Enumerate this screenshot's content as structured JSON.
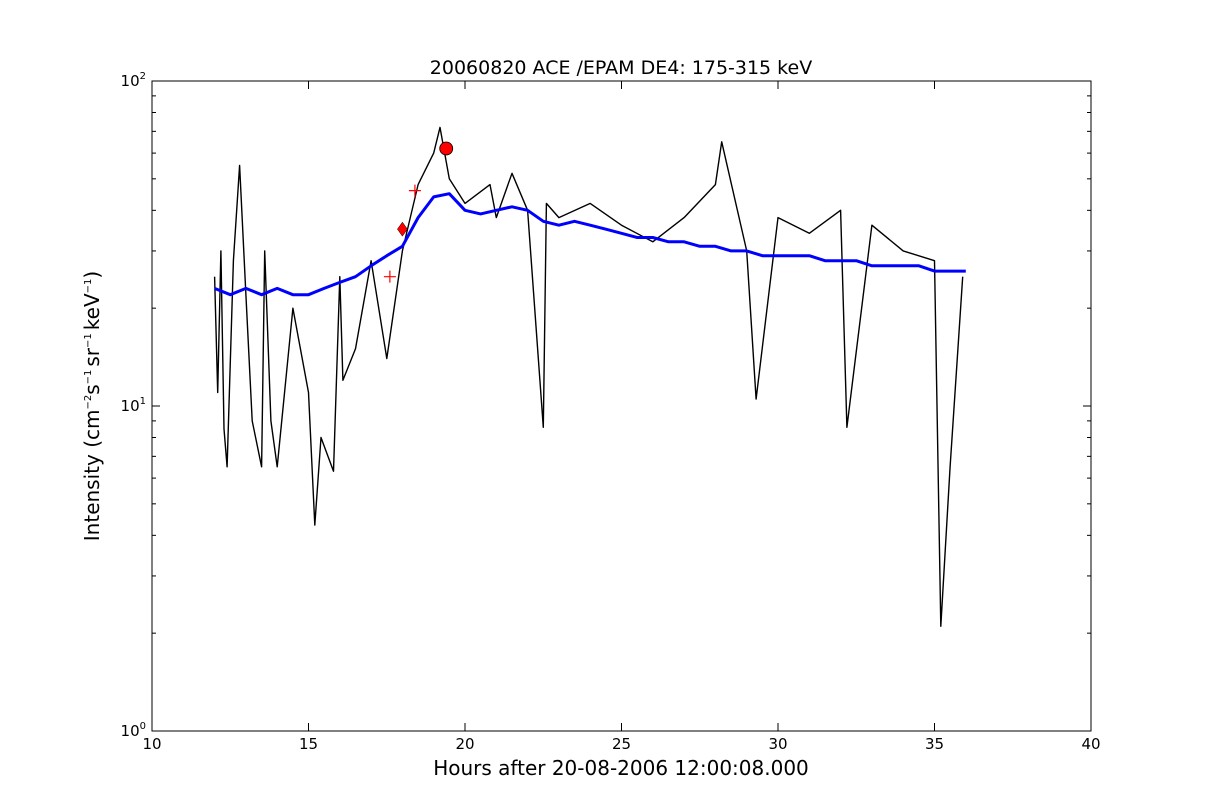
{
  "chart_data": {
    "type": "line",
    "title": "20060820 ACE /EPAM DE4: 175-315 keV",
    "xlabel": "Hours after 20-08-2006 12:00:08.000",
    "ylabel": {
      "prefix": "Intensity (cm",
      "sup1": "−2",
      "part2": "s",
      "sup2": "−1",
      "part3": "sr",
      "sup3": "−1",
      "part4": "keV",
      "sup4": "−1",
      "suffix": ")"
    },
    "xlim": [
      10,
      40
    ],
    "ylim": [
      1,
      100
    ],
    "yscale": "log",
    "grid": false,
    "x_ticks": [
      10,
      15,
      20,
      25,
      30,
      35,
      40
    ],
    "y_ticks": [
      {
        "value": 1,
        "base": "10",
        "exp": "0"
      },
      {
        "value": 10,
        "base": "10",
        "exp": "1"
      },
      {
        "value": 100,
        "base": "10",
        "exp": "2"
      }
    ],
    "series": [
      {
        "color": "#000000",
        "x": [
          12.0,
          12.1,
          12.2,
          12.3,
          12.4,
          12.6,
          12.8,
          13.0,
          13.2,
          13.5,
          13.6,
          13.8,
          14.0,
          14.5,
          15.0,
          15.2,
          15.4,
          15.8,
          16.0,
          16.1,
          16.5,
          17.0,
          17.5,
          18.0,
          18.5,
          19.0,
          19.2,
          19.5,
          20.0,
          20.8,
          21.0,
          21.5,
          22.0,
          22.5,
          22.6,
          23.0,
          24.0,
          25.0,
          26.0,
          27.0,
          28.0,
          28.2,
          29.0,
          29.3,
          30.0,
          31.0,
          32.0,
          32.2,
          33.0,
          34.0,
          35.0,
          35.2,
          35.5,
          35.9
        ],
        "y": [
          25,
          11,
          30,
          8.5,
          6.5,
          28,
          55,
          22,
          9,
          6.5,
          30,
          9,
          6.5,
          20,
          11,
          4.3,
          8,
          6.3,
          25,
          12,
          15,
          28,
          14,
          30,
          48,
          60,
          72,
          50,
          42,
          48,
          38,
          52,
          40,
          8.6,
          42,
          38,
          42,
          36,
          32,
          38,
          48,
          65,
          30,
          10.5,
          38,
          34,
          40,
          8.6,
          36,
          30,
          28,
          2.1,
          6.5,
          25
        ]
      },
      {
        "color": "#0000ff",
        "x": [
          12.0,
          12.5,
          13.0,
          13.5,
          14.0,
          14.5,
          15.0,
          15.5,
          16.0,
          16.5,
          17.0,
          17.5,
          18.0,
          18.5,
          19.0,
          19.5,
          20.0,
          20.5,
          21.0,
          21.5,
          22.0,
          22.5,
          23.0,
          23.5,
          24.0,
          24.5,
          25.0,
          25.5,
          26.0,
          26.5,
          27.0,
          27.5,
          28.0,
          28.5,
          29.0,
          29.5,
          30.0,
          30.5,
          31.0,
          31.5,
          32.0,
          32.5,
          33.0,
          33.5,
          34.0,
          34.5,
          35.0,
          35.5,
          36.0
        ],
        "y": [
          23,
          22,
          23,
          22,
          23,
          22,
          22,
          23,
          24,
          25,
          27,
          29,
          31,
          38,
          44,
          45,
          40,
          39,
          40,
          41,
          40,
          37,
          36,
          37,
          36,
          35,
          34,
          33,
          33,
          32,
          32,
          31,
          31,
          30,
          30,
          29,
          29,
          29,
          29,
          28,
          28,
          28,
          27,
          27,
          27,
          27,
          26,
          26,
          26
        ]
      }
    ],
    "markers": [
      {
        "shape": "circle",
        "x": 19.4,
        "y": 62,
        "color": "#ff0000"
      },
      {
        "shape": "diamond",
        "x": 18.0,
        "y": 35,
        "color": "#ff0000"
      },
      {
        "shape": "plus",
        "x": 18.4,
        "y": 46,
        "color": "#ff0000"
      },
      {
        "shape": "plus",
        "x": 17.6,
        "y": 25,
        "color": "#ff0000"
      }
    ]
  }
}
